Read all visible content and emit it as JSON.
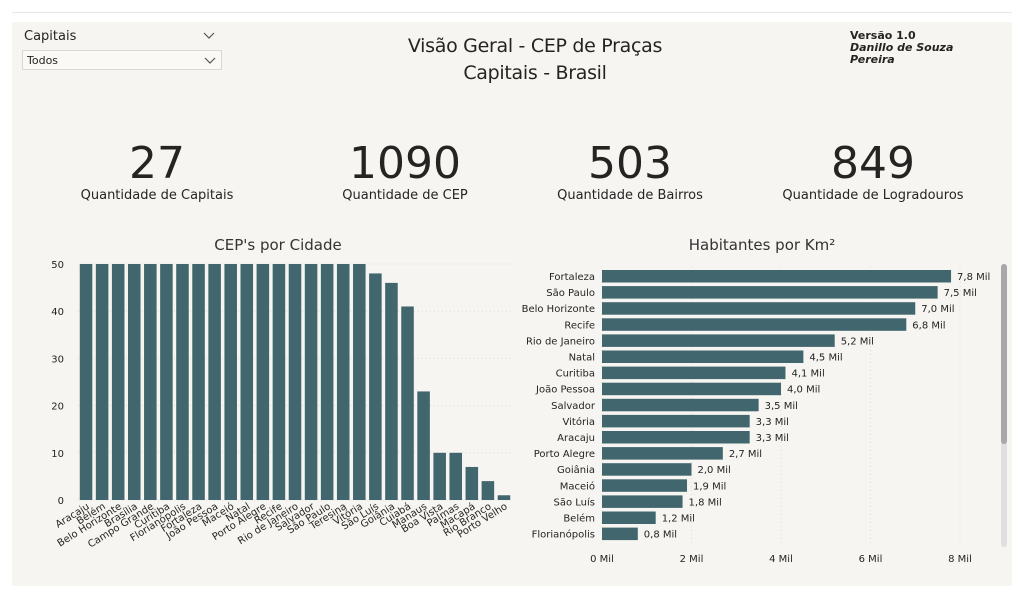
{
  "filters": {
    "field_label": "Capitais",
    "selected_value": "Todos"
  },
  "header": {
    "title_line1": "Visão Geral - CEP de Praças",
    "title_line2": "Capitais - Brasil",
    "version": "Versão 1.0",
    "author": "Danillo de Souza Pereira"
  },
  "kpis": [
    {
      "value": "27",
      "label": "Quantidade de Capitais"
    },
    {
      "value": "1090",
      "label": "Quantidade de CEP"
    },
    {
      "value": "503",
      "label": "Quantidade de Bairros"
    },
    {
      "value": "849",
      "label": "Quantidade de Logradouros"
    }
  ],
  "colors": {
    "bar": "#41666e",
    "background": "#f6f5f1",
    "grid": "#dcdcdc"
  },
  "chart_data": [
    {
      "type": "bar",
      "title": "CEP's por Cidade",
      "categories": [
        "Aracaju",
        "Belém",
        "Belo Horizonte",
        "Brasília",
        "Campo Grande",
        "Curitiba",
        "Florianópolis",
        "Fortaleza",
        "João Pessoa",
        "Maceió",
        "Natal",
        "Porto Alegre",
        "Recife",
        "Rio de Janeiro",
        "Salvador",
        "São Paulo",
        "Teresina",
        "Vitória",
        "São Luís",
        "Goiânia",
        "Cuiabá",
        "Manaus",
        "Boa Vista",
        "Palmas",
        "Macapá",
        "Rio Branco",
        "Porto Velho"
      ],
      "values": [
        50,
        50,
        50,
        50,
        50,
        50,
        50,
        50,
        50,
        50,
        50,
        50,
        50,
        50,
        50,
        50,
        50,
        50,
        48,
        46,
        41,
        23,
        10,
        10,
        7,
        4,
        1
      ],
      "ylim": [
        0,
        50
      ],
      "yticks": [
        "0",
        "10",
        "20",
        "30",
        "40",
        "50"
      ],
      "grid": true
    },
    {
      "type": "bar",
      "orientation": "horizontal",
      "title": "Habitantes por Km²",
      "categories": [
        "Fortaleza",
        "São Paulo",
        "Belo Horizonte",
        "Recife",
        "Rio de Janeiro",
        "Natal",
        "Curitiba",
        "João Pessoa",
        "Salvador",
        "Vitória",
        "Aracaju",
        "Porto Alegre",
        "Goiânia",
        "Maceió",
        "São Luís",
        "Belém",
        "Florianópolis"
      ],
      "values": [
        7.8,
        7.5,
        7.0,
        6.8,
        5.2,
        4.5,
        4.1,
        4.0,
        3.5,
        3.3,
        3.3,
        2.7,
        2.0,
        1.9,
        1.8,
        1.2,
        0.8
      ],
      "data_labels": [
        "7,8 Mil",
        "7,5 Mil",
        "7,0 Mil",
        "6,8 Mil",
        "5,2 Mil",
        "4,5 Mil",
        "4,1 Mil",
        "4,0 Mil",
        "3,5 Mil",
        "3,3 Mil",
        "3,3 Mil",
        "2,7 Mil",
        "2,0 Mil",
        "1,9 Mil",
        "1,8 Mil",
        "1,2 Mil",
        "0,8 Mil"
      ],
      "xlim": [
        0,
        8
      ],
      "xticks": [
        "0 Mil",
        "2 Mil",
        "4 Mil",
        "6 Mil",
        "8 Mil"
      ],
      "grid": true
    }
  ]
}
